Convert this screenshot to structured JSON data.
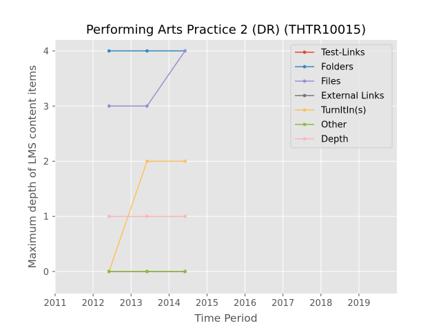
{
  "chart_data": {
    "type": "line",
    "title": "Performing Arts Practice 2 (DR) (THTR10015)",
    "xlabel": "Time Period",
    "ylabel": "Maximum depth of LMS content items",
    "xlim": [
      2011,
      2020
    ],
    "ylim": [
      -0.4,
      4.2
    ],
    "xticks": [
      "2011",
      "2012",
      "2013",
      "2014",
      "2015",
      "2016",
      "2017",
      "2018",
      "2019"
    ],
    "yticks": [
      "0",
      "1",
      "2",
      "3",
      "4"
    ],
    "x": [
      2012.42,
      2013.42,
      2014.42
    ],
    "grid": true,
    "legend_position": "top-right",
    "series": [
      {
        "name": "Test-Links",
        "color": "#E24A33",
        "values": [
          0,
          0,
          0
        ]
      },
      {
        "name": "Folders",
        "color": "#348ABD",
        "values": [
          4,
          4,
          4
        ]
      },
      {
        "name": "Files",
        "color": "#988ED5",
        "values": [
          3,
          3,
          4
        ]
      },
      {
        "name": "External Links",
        "color": "#777777",
        "values": [
          0,
          0,
          0
        ]
      },
      {
        "name": "TurnItIn(s)",
        "color": "#FBC15E",
        "values": [
          0,
          2,
          2
        ]
      },
      {
        "name": "Other",
        "color": "#8EBA42",
        "values": [
          0,
          0,
          0
        ]
      },
      {
        "name": "Depth",
        "color": "#FFB5B8",
        "values": [
          1,
          1,
          1
        ]
      }
    ]
  }
}
